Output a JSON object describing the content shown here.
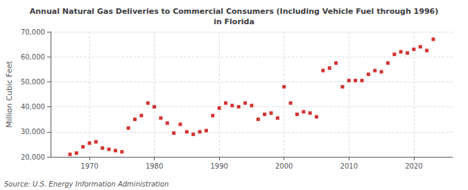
{
  "chart_data": {
    "type": "scatter",
    "title": "Annual Natural Gas Deliveries to Commercial Consumers (Including Vehicle Fuel through 1996)\nin Florida",
    "ylabel": "Million Cubic Feet",
    "source": "Source: U.S. Energy Information Administration",
    "x": [
      1967,
      1968,
      1969,
      1970,
      1971,
      1972,
      1973,
      1974,
      1975,
      1976,
      1977,
      1978,
      1979,
      1980,
      1981,
      1982,
      1983,
      1984,
      1985,
      1986,
      1987,
      1988,
      1989,
      1990,
      1991,
      1992,
      1993,
      1994,
      1995,
      1996,
      1997,
      1998,
      1999,
      2000,
      2001,
      2002,
      2003,
      2004,
      2005,
      2006,
      2007,
      2008,
      2009,
      2010,
      2011,
      2012,
      2013,
      2014,
      2015,
      2016,
      2017,
      2018,
      2019,
      2020,
      2021,
      2022,
      2023
    ],
    "values": [
      21000,
      21500,
      24000,
      25500,
      26000,
      23500,
      23000,
      22500,
      22000,
      31500,
      35000,
      36500,
      41500,
      40000,
      35500,
      33500,
      29500,
      33000,
      30000,
      29000,
      30000,
      30500,
      36500,
      39500,
      41500,
      40500,
      40000,
      41500,
      40500,
      35000,
      37000,
      37500,
      35500,
      48000,
      41500,
      37000,
      38000,
      37500,
      36000,
      54500,
      55500,
      57500,
      48000,
      50500,
      50500,
      50500,
      53000,
      54500,
      54000,
      57500,
      61000,
      62000,
      61500,
      63000,
      64000,
      62500,
      67000
    ],
    "color": "#cc0000",
    "marker": "square",
    "xlim": [
      1964,
      2026
    ],
    "xticks": [
      1970,
      1980,
      1990,
      2000,
      2010,
      2020
    ],
    "ylim": [
      20000,
      70000
    ],
    "yticks": [
      {
        "value": 20000,
        "label": "20,000"
      },
      {
        "value": 30000,
        "label": "30,000"
      },
      {
        "value": 40000,
        "label": "40,000"
      },
      {
        "value": 50000,
        "label": "50,000"
      },
      {
        "value": 60000,
        "label": "60,000"
      },
      {
        "value": 70000,
        "label": "70,000"
      }
    ],
    "grid": true
  }
}
